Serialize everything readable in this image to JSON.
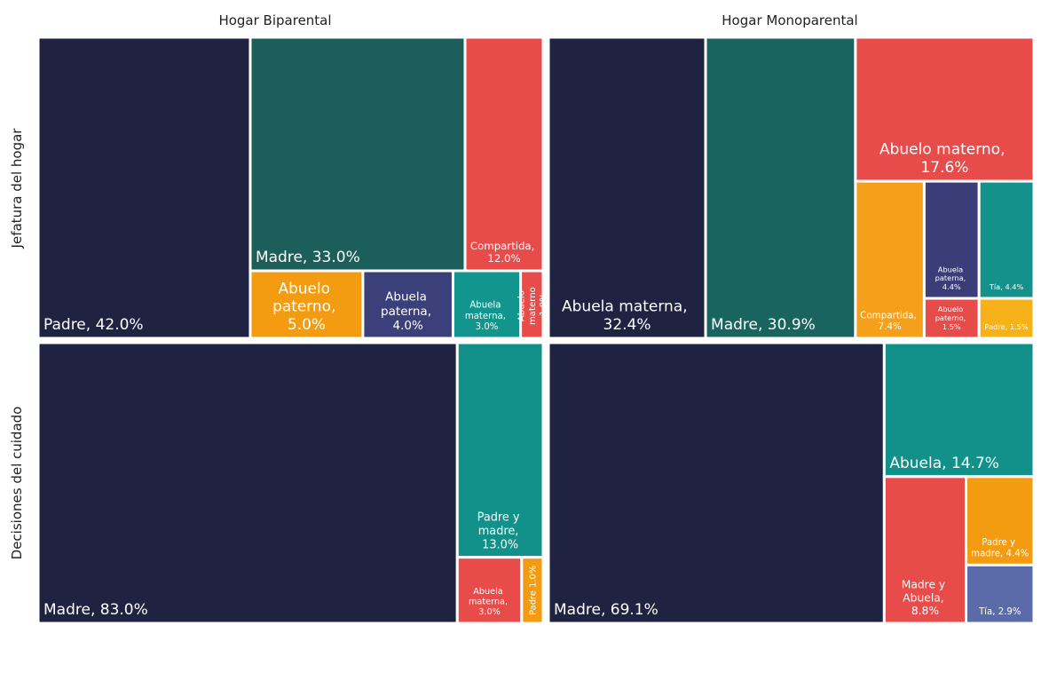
{
  "columns": [
    "Hogar Biparental",
    "Hogar Monoparental"
  ],
  "rows": [
    "Jefatura del hogar",
    "Decisiones del cuidado"
  ],
  "chart_data": [
    {
      "type": "treemap",
      "labels": [
        "Padre, 42.0%",
        "Madre, 33.0%",
        "Compartida, 12.0%",
        "Abuelo paterno, 5.0%",
        "Abuela paterna, 4.0%",
        "Abuela materna, 3.0%",
        "Abuelo materno 1.0%"
      ],
      "values": [
        42.0,
        33.0,
        12.0,
        5.0,
        4.0,
        3.0,
        1.0
      ],
      "colors": [
        "#1f2341",
        "#1b5e5a",
        "#e84c4a",
        "#f39c12",
        "#3b3f7a",
        "#12958c",
        "#e84c4a"
      ]
    },
    {
      "type": "treemap",
      "labels": [
        "Abuela materna, 32.4%",
        "Madre, 30.9%",
        "Abuelo materno, 17.6%",
        "Compartida, 7.4%",
        "Abuela paterna, 4.4%",
        "Abuelo paterno, 1.5%",
        "Tía, 4.4%",
        "Padre, 1.5%"
      ],
      "values": [
        32.4,
        30.9,
        17.6,
        7.4,
        4.4,
        1.5,
        4.4,
        1.5
      ],
      "colors": [
        "#1f2341",
        "#1a6460",
        "#e84c4a",
        "#f5a01a",
        "#3a3d78",
        "#e84c4a",
        "#14918a",
        "#f7b21a"
      ]
    },
    {
      "type": "treemap",
      "labels": [
        "Madre, 83.0%",
        "Padre y madre, 13.0%",
        "Abuela materna, 3.0%",
        "Padre 1.0%"
      ],
      "values": [
        83.0,
        13.0,
        3.0,
        1.0
      ],
      "colors": [
        "#1f2341",
        "#12918a",
        "#e84c4a",
        "#f39c12"
      ]
    },
    {
      "type": "treemap",
      "labels": [
        "Madre, 69.1%",
        "Abuela, 14.7%",
        "Madre y Abuela, 8.8%",
        "Padre y madre, 4.4%",
        "Tía, 2.9%"
      ],
      "values": [
        69.1,
        14.7,
        8.8,
        4.4,
        2.9
      ],
      "colors": [
        "#1f2341",
        "#12918a",
        "#e84c4a",
        "#f39c12",
        "#5b6aa8"
      ]
    }
  ]
}
